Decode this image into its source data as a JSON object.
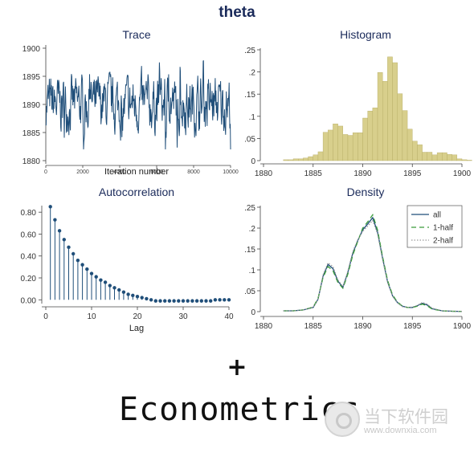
{
  "main_title": "theta",
  "chart_data": [
    {
      "type": "line",
      "title": "Trace",
      "xlabel": "Iteration number",
      "ylabel": "",
      "xlim": [
        0,
        10000
      ],
      "ylim": [
        1880,
        1900
      ],
      "x_ticks": [
        "0",
        "2000",
        "4000",
        "6000",
        "8000",
        "10000"
      ],
      "y_ticks": [
        "1880",
        "1885",
        "1890",
        "1895",
        "1900"
      ],
      "series": [
        {
          "color": "#1f4e79",
          "summary": {
            "center": 1890,
            "typical_range": [
              1885,
              1896
            ],
            "max": 1900,
            "min": 1882
          }
        }
      ]
    },
    {
      "type": "bar",
      "title": "Histogram",
      "xlabel": "",
      "ylabel": "",
      "xlim": [
        1880,
        1900
      ],
      "ylim": [
        0,
        0.25
      ],
      "bin_width": 0.5,
      "bin_start": 1882,
      "values": [
        0.002,
        0.002,
        0.004,
        0.004,
        0.006,
        0.009,
        0.013,
        0.02,
        0.064,
        0.069,
        0.083,
        0.078,
        0.059,
        0.057,
        0.063,
        0.063,
        0.096,
        0.112,
        0.119,
        0.199,
        0.179,
        0.234,
        0.221,
        0.151,
        0.113,
        0.071,
        0.044,
        0.036,
        0.019,
        0.019,
        0.013,
        0.018,
        0.018,
        0.014,
        0.013,
        0.004,
        0.002,
        0.001
      ],
      "color": "#d8cf8c",
      "x_ticks": [
        "1880",
        "1885",
        "1890",
        "1895",
        "1900"
      ],
      "y_ticks": [
        "0",
        ".05",
        ".1",
        ".15",
        ".2",
        ".25"
      ]
    },
    {
      "type": "scatter",
      "title": "Autocorrelation",
      "xlabel": "Lag",
      "ylabel": "",
      "xlim": [
        0,
        40
      ],
      "ylim": [
        -0.02,
        0.86
      ],
      "x": [
        1,
        2,
        3,
        4,
        5,
        6,
        7,
        8,
        9,
        10,
        11,
        12,
        13,
        14,
        15,
        16,
        17,
        18,
        19,
        20,
        21,
        22,
        23,
        24,
        25,
        26,
        27,
        28,
        29,
        30,
        31,
        32,
        33,
        34,
        35,
        36,
        37,
        38,
        39,
        40
      ],
      "values": [
        0.85,
        0.73,
        0.63,
        0.55,
        0.48,
        0.42,
        0.36,
        0.32,
        0.28,
        0.24,
        0.21,
        0.18,
        0.16,
        0.13,
        0.11,
        0.09,
        0.07,
        0.05,
        0.04,
        0.03,
        0.02,
        0.01,
        0.0,
        -0.01,
        -0.01,
        -0.01,
        -0.01,
        -0.01,
        -0.01,
        -0.01,
        -0.01,
        -0.01,
        -0.01,
        -0.01,
        -0.01,
        -0.01,
        -0.0,
        0.0,
        0.0,
        0.0
      ],
      "color": "#1f4e79",
      "x_ticks": [
        "0",
        "10",
        "20",
        "30",
        "40"
      ],
      "y_ticks": [
        "0.00",
        "0.20",
        "0.40",
        "0.60",
        "0.80"
      ]
    },
    {
      "type": "line",
      "title": "Density",
      "xlabel": "",
      "ylabel": "",
      "xlim": [
        1880,
        1900
      ],
      "ylim": [
        0,
        0.25
      ],
      "x": [
        1882,
        1883,
        1884,
        1885,
        1885.5,
        1886,
        1886.5,
        1887,
        1887.5,
        1888,
        1888.5,
        1889,
        1889.5,
        1890,
        1890.5,
        1891,
        1891.5,
        1892,
        1892.5,
        1893,
        1893.5,
        1894,
        1894.5,
        1895,
        1895.5,
        1896,
        1896.5,
        1897,
        1898,
        1899,
        1900
      ],
      "x_ticks": [
        "1880",
        "1885",
        "1890",
        "1895",
        "1900"
      ],
      "y_ticks": [
        "0",
        ".05",
        ".1",
        ".15",
        ".2",
        ".25"
      ],
      "legend_position": "top-right",
      "series": [
        {
          "name": "all",
          "color": "#1f4e79",
          "dash": "",
          "values": [
            0.002,
            0.002,
            0.004,
            0.01,
            0.03,
            0.085,
            0.113,
            0.103,
            0.073,
            0.058,
            0.094,
            0.14,
            0.17,
            0.196,
            0.21,
            0.225,
            0.19,
            0.128,
            0.072,
            0.038,
            0.022,
            0.013,
            0.01,
            0.01,
            0.014,
            0.02,
            0.016,
            0.007,
            0.002,
            0.001,
            0.0005
          ]
        },
        {
          "name": "1-half",
          "color": "#3a9a3a",
          "dash": "6,4",
          "values": [
            0.002,
            0.002,
            0.004,
            0.011,
            0.032,
            0.082,
            0.108,
            0.098,
            0.07,
            0.056,
            0.09,
            0.136,
            0.168,
            0.2,
            0.215,
            0.232,
            0.195,
            0.132,
            0.075,
            0.04,
            0.023,
            0.013,
            0.01,
            0.01,
            0.013,
            0.018,
            0.014,
            0.006,
            0.002,
            0.001,
            0.0005
          ]
        },
        {
          "name": "2-half",
          "color": "#9a9a9a",
          "dash": "1.5,2",
          "values": [
            0.002,
            0.002,
            0.004,
            0.01,
            0.029,
            0.088,
            0.117,
            0.108,
            0.076,
            0.06,
            0.097,
            0.144,
            0.172,
            0.192,
            0.205,
            0.218,
            0.186,
            0.125,
            0.07,
            0.037,
            0.021,
            0.012,
            0.01,
            0.011,
            0.015,
            0.022,
            0.018,
            0.008,
            0.002,
            0.001,
            0.0005
          ]
        }
      ]
    }
  ],
  "plus_sign": "+",
  "brand_text": "Econometrics",
  "watermark": {
    "site_name": "当下软件园",
    "url": "www.downxia.com"
  }
}
